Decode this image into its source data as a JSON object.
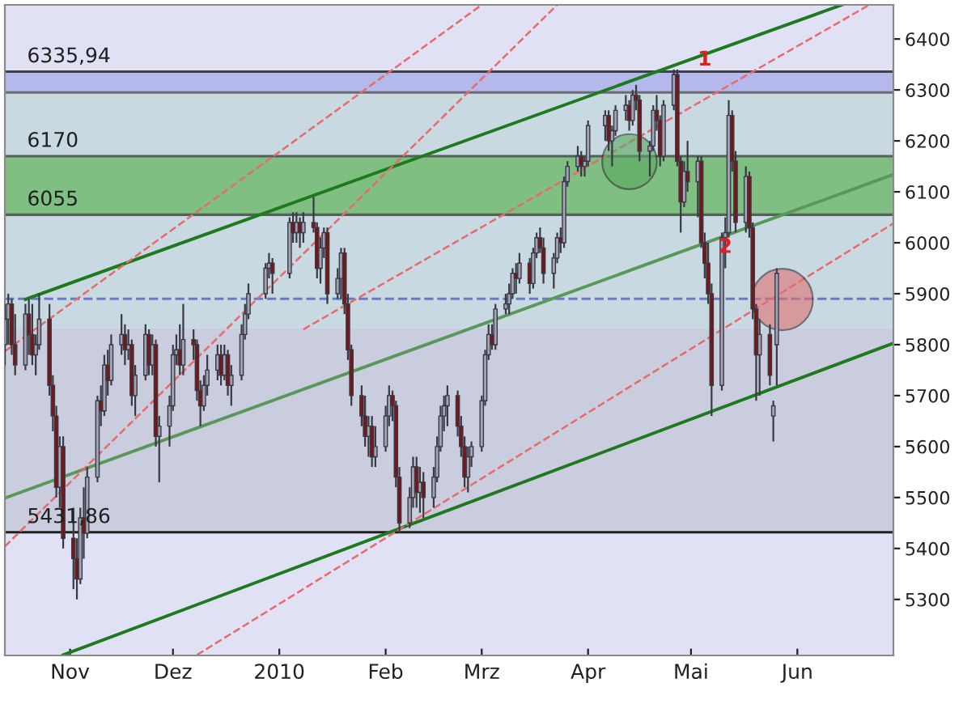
{
  "chart_data": {
    "type": "candlestick",
    "xlim": [
      "2009-10-13",
      "2010-06-29"
    ],
    "ylim": [
      5190,
      6467
    ],
    "xticks": [
      {
        "value": "2009-11-01",
        "label": "Nov"
      },
      {
        "value": "2009-12-01",
        "label": "Dez"
      },
      {
        "value": "2010-01-01",
        "label": "2010"
      },
      {
        "value": "2010-02-01",
        "label": "Feb"
      },
      {
        "value": "2010-03-01",
        "label": "Mrz"
      },
      {
        "value": "2010-04-01",
        "label": "Apr"
      },
      {
        "value": "2010-05-01",
        "label": "Mai"
      },
      {
        "value": "2010-06-01",
        "label": "Jun"
      }
    ],
    "yticks": [
      5300,
      5400,
      5500,
      5600,
      5700,
      5800,
      5900,
      6000,
      6100,
      6200,
      6300,
      6400
    ],
    "x": [
      "2009-10-13",
      "2009-10-14",
      "2009-10-15",
      "2009-10-16",
      "2009-10-19",
      "2009-10-20",
      "2009-10-21",
      "2009-10-22",
      "2009-10-23",
      "2009-10-26",
      "2009-10-27",
      "2009-10-28",
      "2009-10-29",
      "2009-10-30",
      "2009-11-02",
      "2009-11-03",
      "2009-11-04",
      "2009-11-05",
      "2009-11-06",
      "2009-11-09",
      "2009-11-10",
      "2009-11-11",
      "2009-11-12",
      "2009-11-13",
      "2009-11-16",
      "2009-11-17",
      "2009-11-18",
      "2009-11-19",
      "2009-11-20",
      "2009-11-23",
      "2009-11-24",
      "2009-11-25",
      "2009-11-26",
      "2009-11-27",
      "2009-11-30",
      "2009-12-01",
      "2009-12-02",
      "2009-12-03",
      "2009-12-04",
      "2009-12-07",
      "2009-12-08",
      "2009-12-09",
      "2009-12-10",
      "2009-12-11",
      "2009-12-14",
      "2009-12-15",
      "2009-12-16",
      "2009-12-17",
      "2009-12-18",
      "2009-12-21",
      "2009-12-22",
      "2009-12-23",
      "2009-12-28",
      "2009-12-29",
      "2009-12-30",
      "2010-01-04",
      "2010-01-05",
      "2010-01-06",
      "2010-01-07",
      "2010-01-08",
      "2010-01-11",
      "2010-01-12",
      "2010-01-13",
      "2010-01-14",
      "2010-01-15",
      "2010-01-18",
      "2010-01-19",
      "2010-01-20",
      "2010-01-21",
      "2010-01-22",
      "2010-01-25",
      "2010-01-26",
      "2010-01-27",
      "2010-01-28",
      "2010-01-29",
      "2010-02-01",
      "2010-02-02",
      "2010-02-03",
      "2010-02-04",
      "2010-02-05",
      "2010-02-08",
      "2010-02-09",
      "2010-02-10",
      "2010-02-11",
      "2010-02-12",
      "2010-02-15",
      "2010-02-16",
      "2010-02-17",
      "2010-02-18",
      "2010-02-19",
      "2010-02-22",
      "2010-02-23",
      "2010-02-24",
      "2010-02-25",
      "2010-02-26",
      "2010-03-01",
      "2010-03-02",
      "2010-03-03",
      "2010-03-04",
      "2010-03-05",
      "2010-03-08",
      "2010-03-09",
      "2010-03-10",
      "2010-03-11",
      "2010-03-12",
      "2010-03-15",
      "2010-03-16",
      "2010-03-17",
      "2010-03-18",
      "2010-03-19",
      "2010-03-22",
      "2010-03-23",
      "2010-03-24",
      "2010-03-25",
      "2010-03-26",
      "2010-03-29",
      "2010-03-30",
      "2010-03-31",
      "2010-04-01",
      "2010-04-06",
      "2010-04-07",
      "2010-04-08",
      "2010-04-09",
      "2010-04-12",
      "2010-04-13",
      "2010-04-14",
      "2010-04-15",
      "2010-04-16",
      "2010-04-19",
      "2010-04-20",
      "2010-04-21",
      "2010-04-22",
      "2010-04-23",
      "2010-04-26",
      "2010-04-27",
      "2010-04-28",
      "2010-04-29",
      "2010-04-30",
      "2010-05-03",
      "2010-05-04",
      "2010-05-05",
      "2010-05-06",
      "2010-05-07",
      "2010-05-10",
      "2010-05-11",
      "2010-05-12",
      "2010-05-13",
      "2010-05-14",
      "2010-05-17",
      "2010-05-18",
      "2010-05-19",
      "2010-05-20",
      "2010-05-21",
      "2010-05-24",
      "2010-05-25",
      "2010-05-26"
    ],
    "ohlc": [
      [
        5800,
        5880,
        5760,
        5850
      ],
      [
        5850,
        5900,
        5800,
        5880
      ],
      [
        5880,
        5890,
        5780,
        5800
      ],
      [
        5800,
        5860,
        5740,
        5760
      ],
      [
        5760,
        5880,
        5750,
        5860
      ],
      [
        5860,
        5890,
        5780,
        5820
      ],
      [
        5820,
        5880,
        5760,
        5780
      ],
      [
        5780,
        5820,
        5740,
        5800
      ],
      [
        5800,
        5900,
        5790,
        5850
      ],
      [
        5850,
        5880,
        5700,
        5720
      ],
      [
        5720,
        5740,
        5630,
        5660
      ],
      [
        5660,
        5680,
        5500,
        5520
      ],
      [
        5520,
        5620,
        5480,
        5600
      ],
      [
        5600,
        5620,
        5400,
        5420
      ],
      [
        5420,
        5480,
        5320,
        5380
      ],
      [
        5380,
        5420,
        5300,
        5340
      ],
      [
        5340,
        5480,
        5330,
        5460
      ],
      [
        5460,
        5520,
        5380,
        5430
      ],
      [
        5430,
        5560,
        5420,
        5540
      ],
      [
        5540,
        5700,
        5530,
        5690
      ],
      [
        5690,
        5720,
        5640,
        5670
      ],
      [
        5670,
        5780,
        5660,
        5760
      ],
      [
        5760,
        5790,
        5700,
        5730
      ],
      [
        5730,
        5820,
        5720,
        5800
      ],
      [
        5800,
        5860,
        5780,
        5820
      ],
      [
        5820,
        5840,
        5760,
        5790
      ],
      [
        5790,
        5830,
        5770,
        5800
      ],
      [
        5800,
        5810,
        5680,
        5700
      ],
      [
        5700,
        5760,
        5660,
        5740
      ],
      [
        5740,
        5840,
        5730,
        5820
      ],
      [
        5820,
        5830,
        5740,
        5760
      ],
      [
        5760,
        5820,
        5740,
        5800
      ],
      [
        5800,
        5810,
        5600,
        5620
      ],
      [
        5620,
        5660,
        5530,
        5640
      ],
      [
        5640,
        5700,
        5600,
        5680
      ],
      [
        5680,
        5800,
        5670,
        5780
      ],
      [
        5780,
        5820,
        5760,
        5790
      ],
      [
        5790,
        5840,
        5740,
        5760
      ],
      [
        5760,
        5880,
        5740,
        5810
      ],
      [
        5810,
        5830,
        5770,
        5800
      ],
      [
        5800,
        5810,
        5690,
        5710
      ],
      [
        5710,
        5730,
        5640,
        5680
      ],
      [
        5680,
        5740,
        5670,
        5720
      ],
      [
        5720,
        5780,
        5700,
        5750
      ],
      [
        5750,
        5800,
        5730,
        5780
      ],
      [
        5780,
        5800,
        5720,
        5740
      ],
      [
        5740,
        5800,
        5730,
        5780
      ],
      [
        5780,
        5790,
        5700,
        5720
      ],
      [
        5720,
        5760,
        5680,
        5740
      ],
      [
        5740,
        5840,
        5730,
        5820
      ],
      [
        5820,
        5880,
        5810,
        5860
      ],
      [
        5860,
        5920,
        5850,
        5900
      ],
      [
        5900,
        5960,
        5890,
        5950
      ],
      [
        5950,
        5980,
        5930,
        5960
      ],
      [
        5960,
        5970,
        5900,
        5940
      ],
      [
        5940,
        6050,
        5930,
        6040
      ],
      [
        6040,
        6060,
        6000,
        6020
      ],
      [
        6020,
        6060,
        6000,
        6040
      ],
      [
        6040,
        6050,
        5990,
        6020
      ],
      [
        6020,
        6060,
        6000,
        6040
      ],
      [
        6040,
        6090,
        6020,
        6030
      ],
      [
        6030,
        6040,
        5930,
        5950
      ],
      [
        5950,
        6010,
        5920,
        5990
      ],
      [
        5990,
        6030,
        5970,
        6020
      ],
      [
        6020,
        6030,
        5880,
        5900
      ],
      [
        5900,
        5950,
        5890,
        5930
      ],
      [
        5930,
        5990,
        5890,
        5980
      ],
      [
        5980,
        5990,
        5860,
        5880
      ],
      [
        5880,
        5900,
        5770,
        5790
      ],
      [
        5790,
        5800,
        5680,
        5700
      ],
      [
        5700,
        5720,
        5640,
        5660
      ],
      [
        5660,
        5700,
        5600,
        5620
      ],
      [
        5620,
        5660,
        5580,
        5640
      ],
      [
        5640,
        5660,
        5560,
        5580
      ],
      [
        5580,
        5640,
        5560,
        5600
      ],
      [
        5600,
        5680,
        5590,
        5660
      ],
      [
        5660,
        5720,
        5640,
        5700
      ],
      [
        5700,
        5710,
        5650,
        5680
      ],
      [
        5680,
        5690,
        5520,
        5540
      ],
      [
        5540,
        5560,
        5430,
        5450
      ],
      [
        5450,
        5520,
        5440,
        5500
      ],
      [
        5500,
        5580,
        5480,
        5560
      ],
      [
        5560,
        5580,
        5480,
        5510
      ],
      [
        5510,
        5560,
        5470,
        5530
      ],
      [
        5530,
        5550,
        5460,
        5500
      ],
      [
        5500,
        5560,
        5480,
        5540
      ],
      [
        5540,
        5620,
        5530,
        5600
      ],
      [
        5600,
        5680,
        5590,
        5660
      ],
      [
        5660,
        5700,
        5630,
        5680
      ],
      [
        5680,
        5720,
        5640,
        5700
      ],
      [
        5700,
        5710,
        5620,
        5640
      ],
      [
        5640,
        5660,
        5580,
        5600
      ],
      [
        5600,
        5620,
        5520,
        5540
      ],
      [
        5540,
        5600,
        5510,
        5580
      ],
      [
        5580,
        5610,
        5560,
        5600
      ],
      [
        5600,
        5700,
        5590,
        5690
      ],
      [
        5690,
        5790,
        5680,
        5780
      ],
      [
        5780,
        5840,
        5770,
        5820
      ],
      [
        5820,
        5840,
        5790,
        5800
      ],
      [
        5800,
        5880,
        5790,
        5870
      ],
      [
        5870,
        5900,
        5860,
        5880
      ],
      [
        5880,
        5920,
        5860,
        5900
      ],
      [
        5900,
        5950,
        5890,
        5940
      ],
      [
        5940,
        5960,
        5900,
        5930
      ],
      [
        5930,
        5980,
        5920,
        5960
      ],
      [
        5960,
        5970,
        5900,
        5920
      ],
      [
        5920,
        5990,
        5910,
        5980
      ],
      [
        5980,
        6020,
        5970,
        6010
      ],
      [
        6010,
        6030,
        5980,
        5990
      ],
      [
        5990,
        6010,
        5920,
        5940
      ],
      [
        5940,
        5980,
        5910,
        5970
      ],
      [
        5970,
        6020,
        5960,
        6010
      ],
      [
        6010,
        6030,
        5980,
        6000
      ],
      [
        6000,
        6130,
        5990,
        6120
      ],
      [
        6120,
        6160,
        6110,
        6150
      ],
      [
        6150,
        6190,
        6140,
        6170
      ],
      [
        6170,
        6180,
        6130,
        6150
      ],
      [
        6150,
        6170,
        6130,
        6160
      ],
      [
        6160,
        6240,
        6150,
        6230
      ],
      [
        6230,
        6260,
        6200,
        6250
      ],
      [
        6250,
        6260,
        6180,
        6200
      ],
      [
        6200,
        6230,
        6150,
        6220
      ],
      [
        6220,
        6270,
        6210,
        6260
      ],
      [
        6260,
        6290,
        6240,
        6270
      ],
      [
        6270,
        6280,
        6220,
        6240
      ],
      [
        6240,
        6300,
        6230,
        6290
      ],
      [
        6290,
        6310,
        6260,
        6280
      ],
      [
        6280,
        6290,
        6160,
        6180
      ],
      [
        6180,
        6200,
        6130,
        6190
      ],
      [
        6190,
        6270,
        6180,
        6260
      ],
      [
        6260,
        6290,
        6220,
        6240
      ],
      [
        6240,
        6250,
        6150,
        6170
      ],
      [
        6170,
        6280,
        6160,
        6270
      ],
      [
        6270,
        6340,
        6260,
        6330
      ],
      [
        6330,
        6340,
        6150,
        6160
      ],
      [
        6160,
        6170,
        6020,
        6080
      ],
      [
        6080,
        6160,
        6070,
        6140
      ],
      [
        6140,
        6200,
        6100,
        6120
      ],
      [
        6120,
        6170,
        6050,
        6160
      ],
      [
        6160,
        6170,
        5990,
        6000
      ],
      [
        6000,
        6020,
        5930,
        5960
      ],
      [
        5960,
        6000,
        5880,
        5900
      ],
      [
        5900,
        5920,
        5660,
        5720
      ],
      [
        5720,
        6020,
        5710,
        6010
      ],
      [
        6010,
        6050,
        5950,
        6020
      ],
      [
        6020,
        6280,
        6010,
        6250
      ],
      [
        6250,
        6260,
        6140,
        6160
      ],
      [
        6160,
        6180,
        6020,
        6040
      ],
      [
        6040,
        6150,
        6020,
        6130
      ],
      [
        6130,
        6140,
        6010,
        6030
      ],
      [
        6030,
        6040,
        5850,
        5870
      ],
      [
        5870,
        5880,
        5690,
        5780
      ],
      [
        5780,
        5850,
        5700,
        5820
      ],
      [
        5820,
        5840,
        5720,
        5740
      ],
      [
        5660,
        5690,
        5610,
        5680
      ],
      [
        5800,
        5950,
        5720,
        5940
      ]
    ],
    "series": [
      {
        "type": "line",
        "x": [
          "2009-10-19",
          "2010-06-14"
        ],
        "values": [
          5889,
          6467
        ],
        "color": "#1e7a1e",
        "line_style": "solid"
      },
      {
        "type": "line",
        "x": [
          "2009-10-13",
          "2010-06-29"
        ],
        "values": [
          5499,
          6134
        ],
        "color": "#5a985a",
        "line_style": "solid"
      },
      {
        "type": "line",
        "x": [
          "2009-10-30",
          "2010-06-29"
        ],
        "values": [
          5191,
          5803
        ],
        "color": "#1e7a1e",
        "line_style": "solid"
      },
      {
        "type": "line",
        "x": [
          "2009-10-13",
          "2010-03-01"
        ],
        "values": [
          5787,
          6467
        ],
        "color": "#e86a6a",
        "line_style": "dashed"
      },
      {
        "type": "line",
        "x": [
          "2009-10-13",
          "2010-03-23"
        ],
        "values": [
          5404,
          6467
        ],
        "color": "#e86a6a",
        "line_style": "dashed"
      },
      {
        "type": "line",
        "x": [
          "2009-12-08",
          "2010-06-29"
        ],
        "values": [
          5191,
          6038
        ],
        "color": "#e86a6a",
        "line_style": "dashed"
      },
      {
        "type": "line",
        "x": [
          "2010-01-08",
          "2010-06-22"
        ],
        "values": [
          5830,
          6467
        ],
        "color": "#e86a6a",
        "line_style": "dashed"
      }
    ],
    "bands": [
      {
        "axis": "y",
        "from": 5431.86,
        "to": 5832,
        "color": "#c9cddd"
      },
      {
        "axis": "y",
        "from": 5832,
        "to": 6295,
        "color": "#c8d9e1"
      },
      {
        "axis": "y",
        "from": 6055,
        "to": 6170,
        "color": "#7fbf82"
      },
      {
        "axis": "y",
        "from": 6295,
        "to": 6335.94,
        "color": "#b4b8ea"
      }
    ],
    "ref_lines": [
      {
        "axis": "y",
        "value": 6335.94,
        "label": "6335,94",
        "color": "#404048",
        "line_style": "solid"
      },
      {
        "axis": "y",
        "value": 6295,
        "color": "#6a6a72",
        "line_style": "solid"
      },
      {
        "axis": "y",
        "value": 6170,
        "label": "6170",
        "color": "#55605a",
        "line_style": "solid"
      },
      {
        "axis": "y",
        "value": 6055,
        "label": "6055",
        "color": "#55605a",
        "line_style": "solid"
      },
      {
        "axis": "y",
        "value": 5890,
        "color": "#6a78c8",
        "line_style": "dashed"
      },
      {
        "axis": "y",
        "value": 5431.86,
        "label": "5431,86",
        "color": "#202020",
        "line_style": "solid"
      }
    ],
    "annotations": [
      {
        "text": "1",
        "x": "2010-05-05",
        "y": 6359
      },
      {
        "text": "2",
        "x": "2010-05-11",
        "y": 5991
      }
    ]
  }
}
